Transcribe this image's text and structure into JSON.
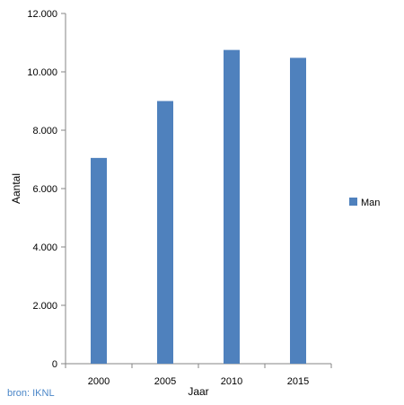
{
  "chart_data": {
    "type": "bar",
    "categories": [
      "2000",
      "2005",
      "2010",
      "2015"
    ],
    "series": [
      {
        "name": "Man",
        "values": [
          7050,
          9000,
          10750,
          10480
        ],
        "color": "#4f81bd"
      }
    ],
    "xlabel": "Jaar",
    "ylabel": "Aantal",
    "ylim": [
      0,
      12000
    ],
    "yticks": [
      0,
      2000,
      4000,
      6000,
      8000,
      10000,
      12000
    ],
    "ytick_labels": [
      "0",
      "2.000",
      "4.000",
      "6.000",
      "8.000",
      "10.000",
      "12.000"
    ],
    "grid": false,
    "legend_position": "right"
  },
  "source_note": "bron: IKNL"
}
